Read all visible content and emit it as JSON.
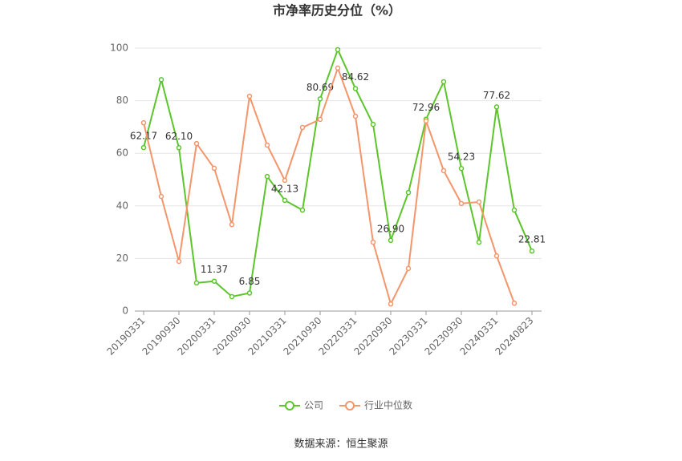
{
  "chart_data": {
    "type": "line",
    "title": "市净率历史分位（%）",
    "categories": [
      "20190331",
      null,
      "20190930",
      null,
      "20200331",
      null,
      "20200930",
      null,
      "20210331",
      null,
      "20210930",
      null,
      "20220331",
      null,
      "20220930",
      null,
      "20230331",
      null,
      "20230930",
      null,
      "20240331",
      null,
      "20240823"
    ],
    "series": [
      {
        "name": "公司",
        "color": "#5cc52c",
        "values": [
          62.17,
          88,
          62.1,
          10.7,
          11.37,
          5.5,
          6.85,
          51.2,
          42.13,
          38.4,
          80.69,
          99.4,
          84.62,
          71,
          26.9,
          45.1,
          72.96,
          87.2,
          54.23,
          26.2,
          77.62,
          38.4,
          22.81
        ],
        "value_labels": [
          "62.17",
          null,
          "62.10",
          null,
          "11.37",
          null,
          "6.85",
          null,
          "42.13",
          null,
          "80.69",
          null,
          "84.62",
          null,
          "26.90",
          null,
          "72.96",
          null,
          "54.23",
          null,
          "77.62",
          null,
          "22.81"
        ]
      },
      {
        "name": "行业中位数",
        "color": "#f4956a",
        "values": [
          71.6,
          43.6,
          18.9,
          63.7,
          54.3,
          32.9,
          81.7,
          63.1,
          49.7,
          69.8,
          72.9,
          92.4,
          74.1,
          26.2,
          2.7,
          16.2,
          72.3,
          53.4,
          40.9,
          41.5,
          21,
          3,
          null
        ]
      }
    ],
    "ylim": [
      0,
      100
    ],
    "yticks": [
      0,
      20,
      40,
      60,
      80,
      100
    ],
    "grid": true,
    "legend": "bottom",
    "source": "数据来源：恒生聚源"
  }
}
